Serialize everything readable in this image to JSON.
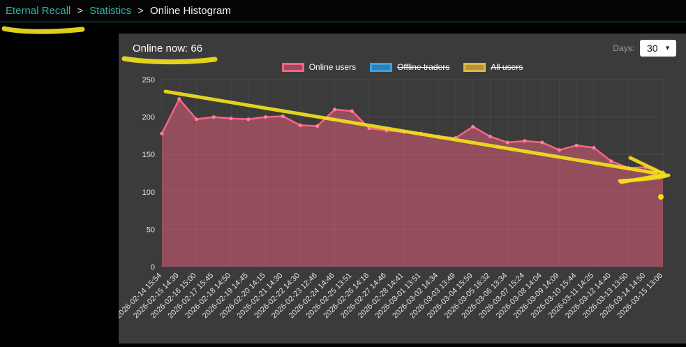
{
  "breadcrumb": {
    "separator": ">",
    "items": [
      {
        "label": "Eternal Recall"
      },
      {
        "label": "Statistics"
      },
      {
        "label": "Online Histogram"
      }
    ]
  },
  "panel": {
    "online_now_label": "Online now: 66",
    "days_label": "Days:",
    "days_value": "30"
  },
  "chart_data": {
    "type": "area",
    "title": "",
    "xlabel": "",
    "ylabel": "",
    "ylim": [
      0,
      250
    ],
    "yticks": [
      0,
      50,
      100,
      150,
      200,
      250
    ],
    "grid": true,
    "legend_position": "top",
    "x": [
      "2026-02-14 15:54",
      "2026-02-15 14:39",
      "2026-02-16 15:00",
      "2026-02-17 15:45",
      "2026-02-18 14:50",
      "2026-02-19 14:45",
      "2026-02-20 14:15",
      "2026-02-21 14:30",
      "2026-02-22 14:30",
      "2026-02-23 12:46",
      "2026-02-24 14:46",
      "2026-02-25 13:51",
      "2026-02-26 14:16",
      "2026-02-27 14:46",
      "2026-02-28 14:41",
      "2026-03-01 13:51",
      "2026-03-02 14:34",
      "2026-03-03 13:49",
      "2026-03-04 15:59",
      "2026-03-05 16:32",
      "2026-03-06 13:34",
      "2026-03-07 15:24",
      "2026-03-08 14:04",
      "2026-03-09 14:09",
      "2026-03-10 15:44",
      "2026-03-11 14:25",
      "2026-03-12 14:40",
      "2026-03-13 13:50",
      "2026-03-14 14:50",
      "2026-03-15 13:06"
    ],
    "series": [
      {
        "name": "Online users",
        "hidden": false,
        "line_color": "#ff6384",
        "fill_color": "rgba(255,99,132,0.45)",
        "point_color": "#ff7f9b",
        "values": [
          178,
          224,
          197,
          200,
          198,
          197,
          200,
          201,
          189,
          188,
          210,
          208,
          185,
          182,
          180,
          178,
          174,
          172,
          187,
          174,
          166,
          168,
          166,
          156,
          162,
          159,
          141,
          132,
          133,
          126
        ]
      },
      {
        "name": "Offline traders",
        "hidden": true,
        "line_color": "#36a2eb",
        "fill_color": "rgba(54,162,235,0.65)",
        "point_color": "#36a2eb",
        "values": []
      },
      {
        "name": "All users",
        "hidden": true,
        "line_color": "#e3b93c",
        "fill_color": "rgba(255,206,86,0.6)",
        "point_color": "#e3b93c",
        "values": []
      }
    ]
  },
  "annotations": {
    "color": "#f2df1c",
    "items": [
      "underline-brand",
      "underline-online-now",
      "declining-trend-arrow",
      "dot-near-chart-end"
    ]
  }
}
